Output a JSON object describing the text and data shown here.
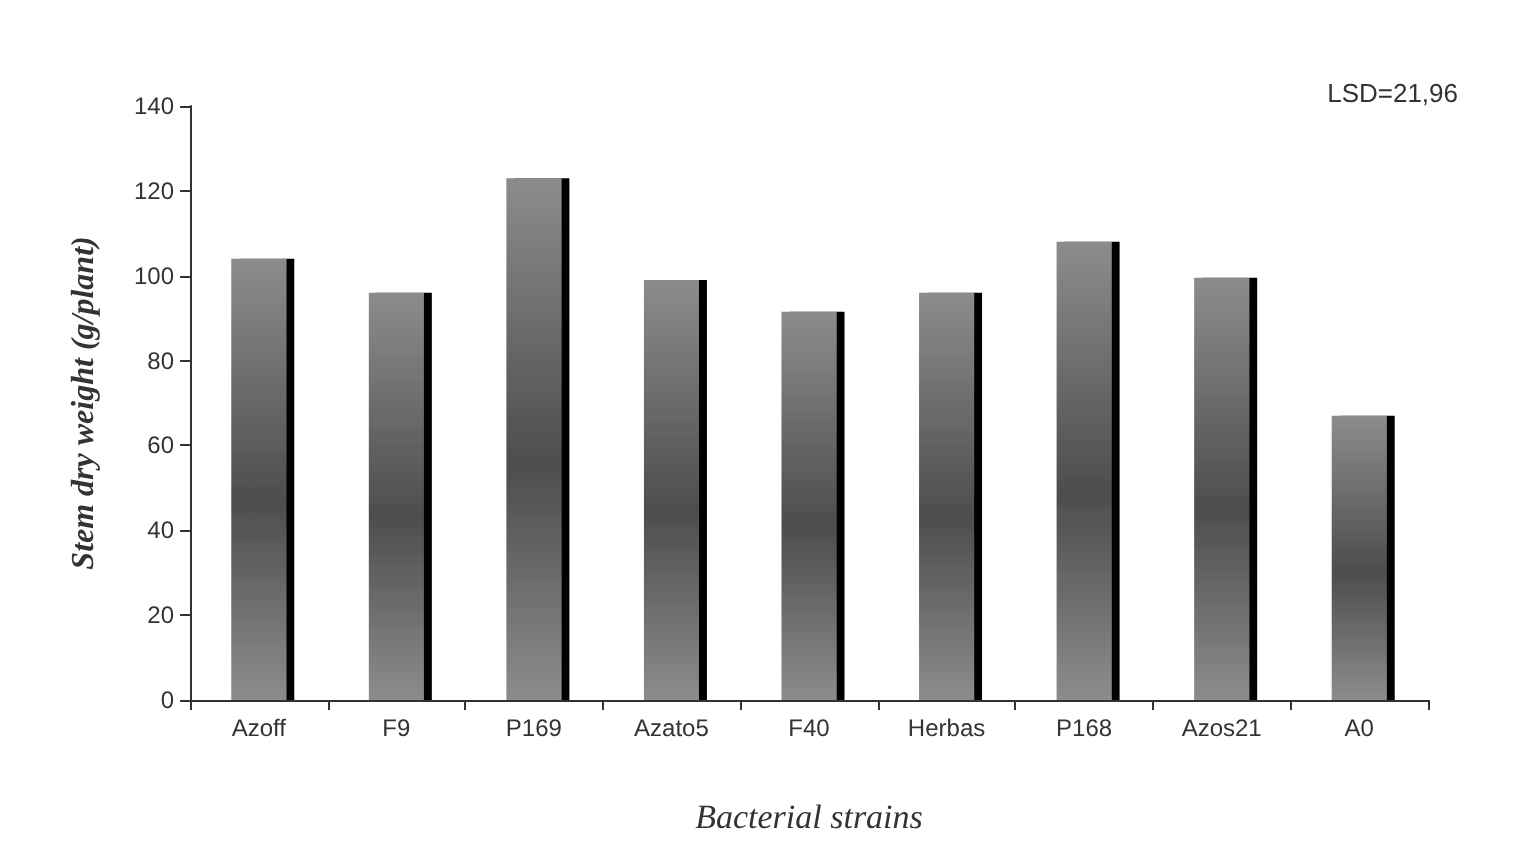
{
  "chart_data": {
    "type": "bar",
    "xlabel": "Bacterial strains",
    "ylabel": "Stem dry weight (g/plant)",
    "categories": [
      "Azoff",
      "F9",
      "P169",
      "Azato5",
      "F40",
      "Herbas",
      "P168",
      "Azos21",
      "A0"
    ],
    "values": [
      104,
      96,
      123,
      99,
      91.5,
      96,
      108,
      99.5,
      67
    ],
    "color": "#8c8c8c",
    "ylim": [
      0,
      140
    ],
    "yticks": [
      0,
      20,
      40,
      60,
      80,
      100,
      120,
      140
    ],
    "grid": false,
    "annotations": [
      "LSD=21,96"
    ]
  }
}
